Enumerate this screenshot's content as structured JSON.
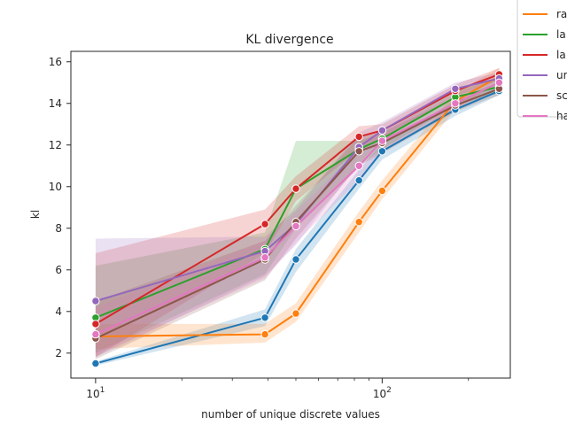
{
  "chart_data": {
    "type": "line",
    "title": "KL divergence",
    "xlabel": "number of unique discrete values",
    "ylabel": "kl",
    "xscale": "log",
    "xlim": [
      8.2,
      280
    ],
    "ylim": [
      0.8,
      16.5
    ],
    "yticks": [
      2,
      4,
      6,
      8,
      10,
      12,
      14,
      16
    ],
    "xticks": [
      {
        "value": 10,
        "base": "10",
        "exp": "1"
      },
      {
        "value": 100,
        "base": "10",
        "exp": "2"
      }
    ],
    "grid": false,
    "legend_position": "outside top-right (clipped)",
    "legend_entries": [
      "ra",
      "la",
      "la",
      "ur",
      "sc",
      "ha"
    ],
    "x": [
      10,
      39,
      50,
      83,
      100,
      180,
      256
    ],
    "series": [
      {
        "color": "#1f77b4",
        "values": [
          1.5,
          3.7,
          6.5,
          10.3,
          11.7,
          13.7,
          14.6
        ],
        "band": [
          [
            1.4,
            1.6
          ],
          [
            3.3,
            4.1
          ],
          [
            5.9,
            7.0
          ],
          [
            9.9,
            10.8
          ],
          [
            11.3,
            12.1
          ],
          [
            13.4,
            14.1
          ],
          [
            14.4,
            14.9
          ]
        ]
      },
      {
        "color": "#ff7f0e",
        "values": [
          2.8,
          2.9,
          3.9,
          8.3,
          9.8,
          14.1,
          15.3
        ],
        "band": [
          [
            2.2,
            3.4
          ],
          [
            2.5,
            3.4
          ],
          [
            3.5,
            4.4
          ],
          [
            7.8,
            8.8
          ],
          [
            9.4,
            10.3
          ],
          [
            13.7,
            14.5
          ],
          [
            15.0,
            15.7
          ]
        ]
      },
      {
        "color": "#2ca02c",
        "values": [
          3.7,
          7.0,
          9.9,
          11.8,
          12.3,
          14.3,
          14.8
        ],
        "band": [
          [
            2.0,
            6.2
          ],
          [
            5.8,
            7.8
          ],
          [
            8.0,
            12.2
          ],
          [
            11.0,
            12.2
          ],
          [
            11.8,
            12.6
          ],
          [
            13.9,
            14.6
          ],
          [
            14.5,
            15.2
          ]
        ]
      },
      {
        "color": "#d62728",
        "values": [
          3.4,
          8.2,
          9.9,
          12.4,
          12.7,
          14.6,
          15.4
        ],
        "band": [
          [
            1.8,
            6.8
          ],
          [
            6.8,
            8.9
          ],
          [
            9.3,
            10.5
          ],
          [
            11.8,
            12.9
          ],
          [
            12.3,
            13.0
          ],
          [
            14.3,
            14.9
          ],
          [
            15.1,
            15.7
          ]
        ]
      },
      {
        "color": "#9467bd",
        "values": [
          4.5,
          6.9,
          8.2,
          11.9,
          12.7,
          14.7,
          15.2
        ],
        "band": [
          [
            1.8,
            7.5
          ],
          [
            5.7,
            7.6
          ],
          [
            7.2,
            8.9
          ],
          [
            11.1,
            12.6
          ],
          [
            12.2,
            13.1
          ],
          [
            14.4,
            15.0
          ],
          [
            14.9,
            15.5
          ]
        ]
      },
      {
        "color": "#8c564b",
        "values": [
          2.7,
          6.5,
          8.3,
          11.7,
          12.1,
          13.9,
          14.7
        ],
        "band": [
          [
            1.7,
            4.5
          ],
          [
            5.5,
            7.4
          ],
          [
            7.5,
            9.1
          ],
          [
            11.0,
            12.4
          ],
          [
            11.6,
            12.6
          ],
          [
            13.6,
            14.3
          ],
          [
            14.4,
            15.0
          ]
        ]
      },
      {
        "color": "#e377c2",
        "values": [
          2.9,
          6.6,
          8.1,
          11.0,
          12.2,
          14.0,
          15.0
        ],
        "band": [
          [
            1.9,
            4.2
          ],
          [
            5.6,
            7.4
          ],
          [
            7.3,
            8.8
          ],
          [
            10.3,
            11.8
          ],
          [
            11.7,
            12.7
          ],
          [
            13.7,
            14.4
          ],
          [
            14.7,
            15.3
          ]
        ]
      }
    ]
  }
}
